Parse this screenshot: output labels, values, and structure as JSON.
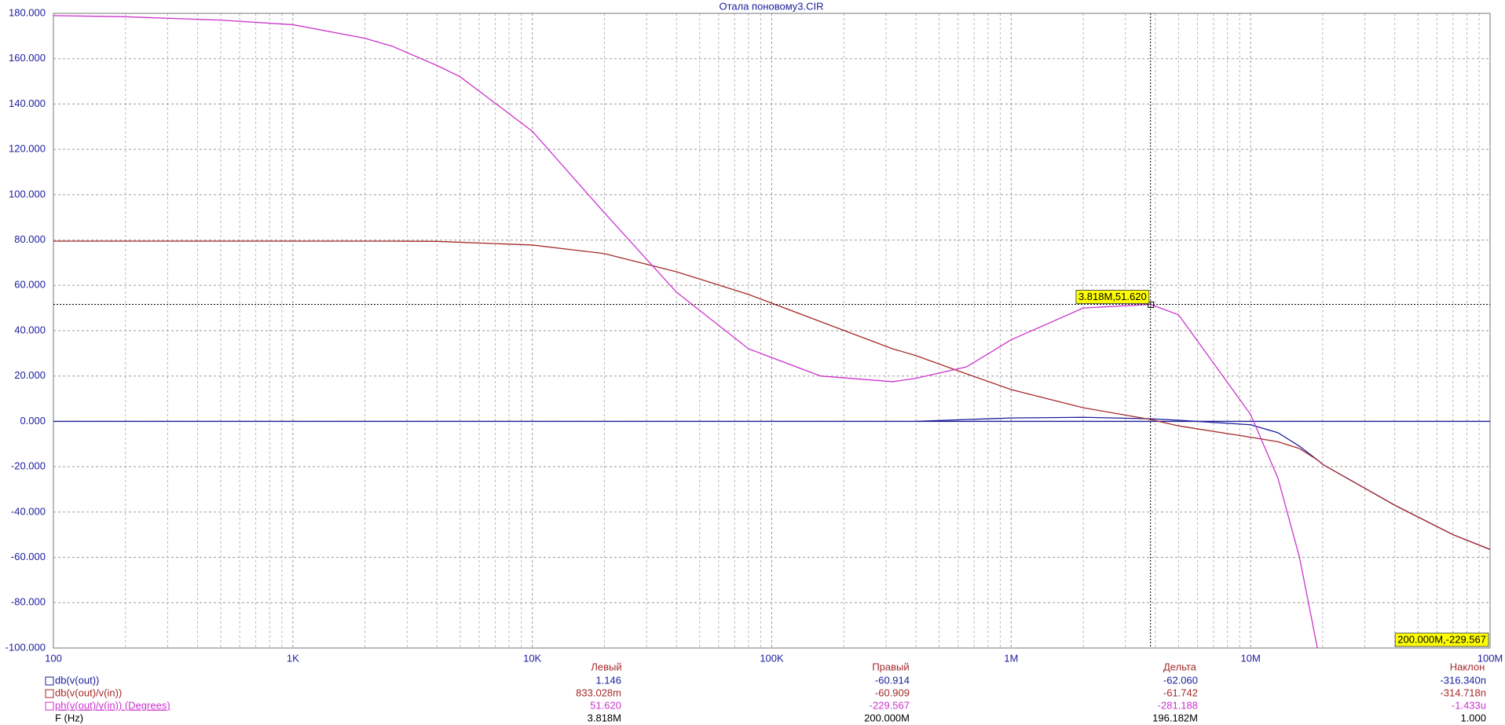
{
  "chart_data": {
    "type": "line",
    "title": "Отала поновому3.CIR",
    "xscale": "log",
    "x": [
      100,
      200,
      500,
      1000,
      2000,
      2600,
      4000,
      5000,
      10000,
      20000,
      40000,
      80000,
      160000,
      320000,
      400000,
      650000,
      1000000,
      2000000,
      3818000,
      5000000,
      10000000,
      13000000,
      16000000,
      19000000,
      20000000,
      40000000,
      70000000,
      100000000
    ],
    "series": [
      {
        "name": "db(v(out))",
        "color": "#1c1c9c",
        "values": [
          null,
          null,
          null,
          null,
          null,
          null,
          null,
          null,
          null,
          null,
          null,
          null,
          null,
          null,
          0,
          0.8,
          1.5,
          1.8,
          1.146,
          0.5,
          -1.5,
          -5,
          -11,
          -17,
          -19,
          -37,
          -50,
          -56.5
        ]
      },
      {
        "name": "db(v(out)/v(in))",
        "color": "#a52a2a",
        "values": [
          79.5,
          79.5,
          79.5,
          79.5,
          79.5,
          79.5,
          79.4,
          79,
          77.8,
          74,
          66,
          56,
          44,
          32,
          29,
          21,
          14,
          6,
          0.833,
          -2,
          -7,
          -9,
          -12,
          -17,
          -19,
          -37,
          -50,
          -56.5
        ]
      },
      {
        "name": "ph(v(out)/v(in)) (Degrees)",
        "color": "#cc33cc",
        "values": [
          179,
          178.5,
          177,
          175,
          169,
          165.5,
          157,
          152,
          128,
          92,
          57,
          32,
          20,
          17.5,
          19,
          24,
          36,
          50,
          51.62,
          47,
          3,
          -25,
          -60,
          -100,
          null,
          null,
          null,
          null
        ]
      }
    ],
    "xlim": [
      100,
      100000000
    ],
    "xticks": [
      100,
      {
        "value": 1000,
        "label": "1K"
      },
      {
        "value": 10000,
        "label": "10K"
      },
      {
        "value": 100000,
        "label": "100K"
      },
      {
        "value": 1000000,
        "label": "1M"
      },
      {
        "value": 10000000,
        "label": "10M"
      },
      {
        "value": 100000000,
        "label": "100M"
      }
    ],
    "ylim": [
      -100,
      180
    ],
    "yticks": [
      {
        "value": -100,
        "label": "-100.000"
      },
      {
        "value": -80,
        "label": "-80.000"
      },
      {
        "value": -60,
        "label": "-60.000"
      },
      {
        "value": -40,
        "label": "-40.000"
      },
      {
        "value": -20,
        "label": "-20.000"
      },
      {
        "value": 0,
        "label": "0.000"
      },
      {
        "value": 20,
        "label": "20.000"
      },
      {
        "value": 40,
        "label": "40.000"
      },
      {
        "value": 60,
        "label": "60.000"
      },
      {
        "value": 80,
        "label": "80.000"
      },
      {
        "value": 100,
        "label": "100.000"
      },
      {
        "value": 120,
        "label": "120.000"
      },
      {
        "value": 140,
        "label": "140.000"
      },
      {
        "value": 160,
        "label": "160.000"
      },
      {
        "value": 180,
        "label": "180.000"
      }
    ],
    "grid": true,
    "cursor": {
      "x": 3818000,
      "y": 51.62,
      "label": "3.818M,51.620"
    },
    "end_label": "200.000M,-229.567",
    "readout": {
      "columns": [
        "Левый",
        "Правый",
        "Дельта",
        "Наклон"
      ],
      "rows": [
        [
          "1.146",
          "-60.914",
          "-62.060",
          "-316.340n"
        ],
        [
          "833.028m",
          "-60.909",
          "-61.742",
          "-314.718n"
        ],
        [
          "51.620",
          "-229.567",
          "-281.188",
          "-1.433u"
        ]
      ],
      "x_row": {
        "name": "F (Hz)",
        "cells": [
          "3.818M",
          "200.000M",
          "196.182M",
          "1.000"
        ]
      }
    }
  }
}
